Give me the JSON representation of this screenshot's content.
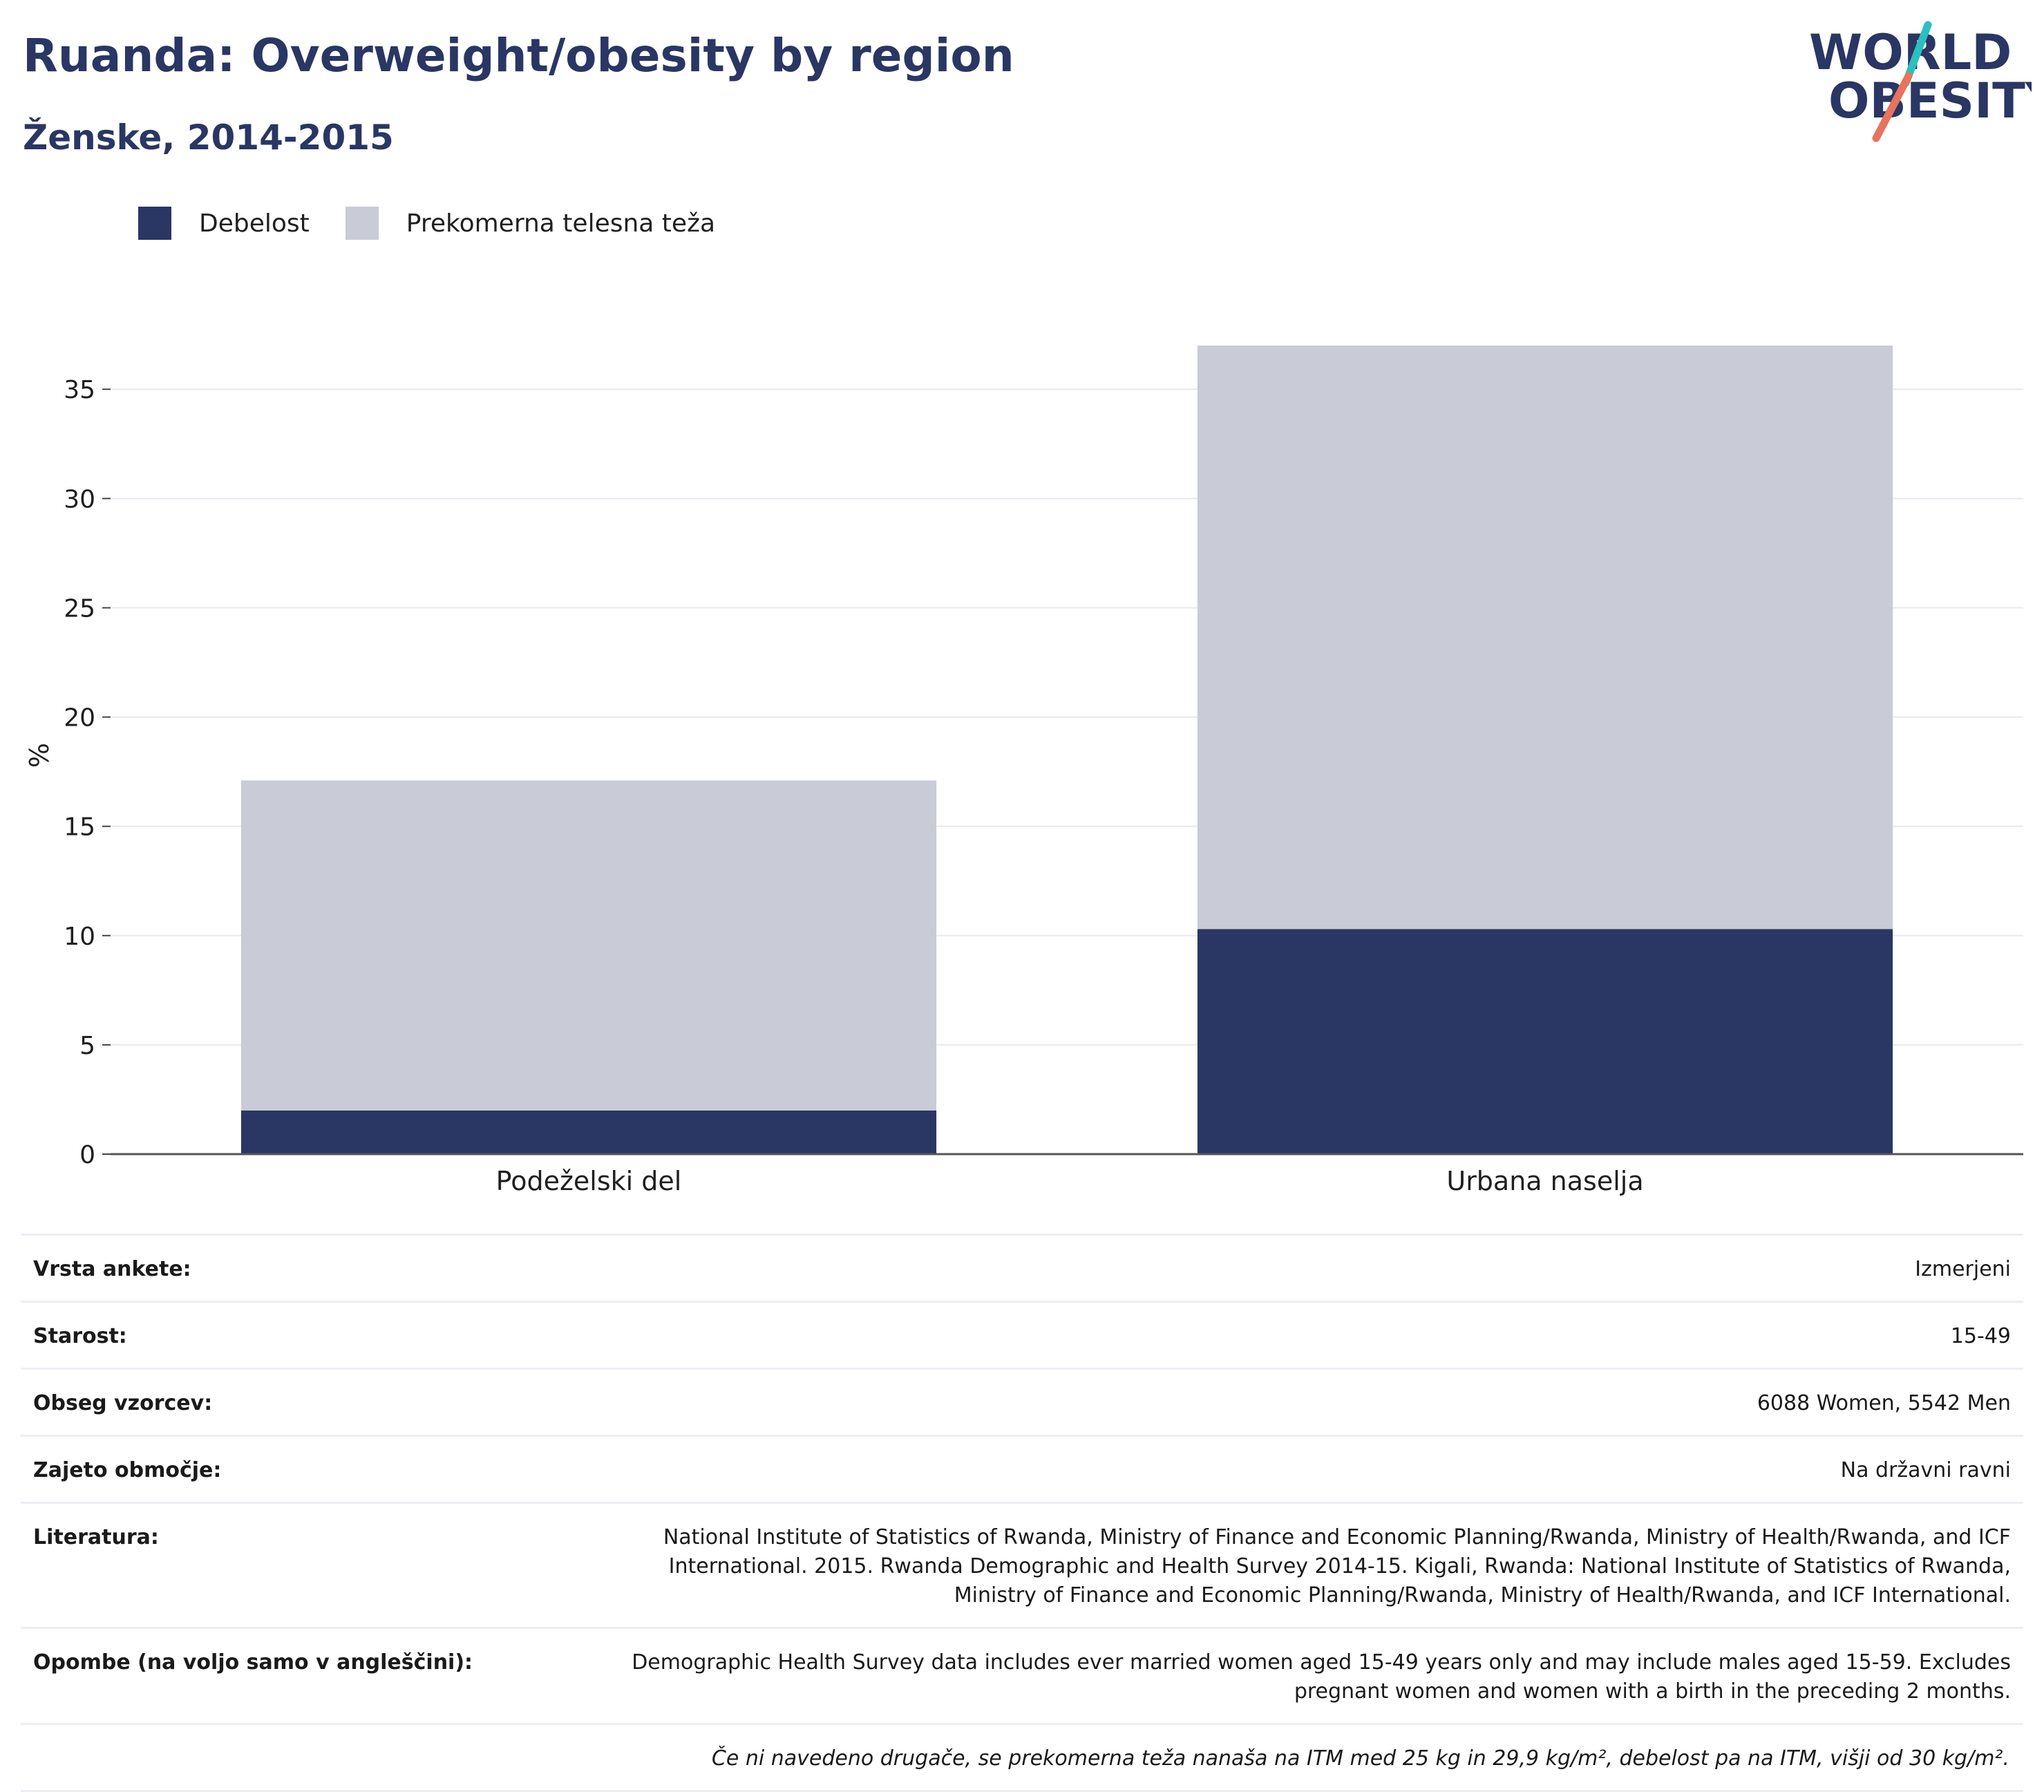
{
  "header": {
    "title": "Ruanda: Overweight/obesity by region",
    "subtitle": "Ženske, 2014-2015"
  },
  "logo": {
    "line1": "WORLD",
    "line2": "OBESITY",
    "colors": {
      "text": "#2a3663",
      "accent_teal": "#2bbfbf",
      "accent_coral": "#e8735e"
    }
  },
  "legend": [
    {
      "label": "Debelost",
      "color": "#2a3663"
    },
    {
      "label": "Prekomerna telesna teža",
      "color": "#c9cbd6"
    }
  ],
  "chart_data": {
    "type": "bar",
    "stacked": true,
    "categories": [
      "Podeželski del",
      "Urbana naselja"
    ],
    "series": [
      {
        "name": "Debelost",
        "values": [
          2.0,
          10.3
        ],
        "color": "#2a3663"
      },
      {
        "name": "Prekomerna telesna teža",
        "values": [
          15.1,
          26.7
        ],
        "color": "#c9cbd6"
      }
    ],
    "ylabel": "%",
    "xlabel": "",
    "ylim": [
      0,
      37
    ],
    "yticks": [
      0,
      5,
      10,
      15,
      20,
      25,
      30,
      35
    ],
    "grid": true,
    "legend_position": "top-left"
  },
  "meta": [
    {
      "key": "Vrsta ankete:",
      "value": "Izmerjeni"
    },
    {
      "key": "Starost:",
      "value": "15-49"
    },
    {
      "key": "Obseg vzorcev:",
      "value": "6088 Women, 5542 Men"
    },
    {
      "key": "Zajeto območje:",
      "value": "Na državni ravni"
    },
    {
      "key": "Literatura:",
      "value": "National Institute of Statistics of Rwanda, Ministry of Finance and Economic Planning/Rwanda, Ministry of Health/Rwanda, and ICF International. 2015. Rwanda Demographic and Health Survey 2014-15. Kigali, Rwanda: National Institute of Statistics of Rwanda, Ministry of Finance and Economic Planning/Rwanda, Ministry of Health/Rwanda, and ICF International."
    },
    {
      "key": "Opombe (na voljo samo v angleščini):",
      "value": "Demographic Health Survey data includes ever married women aged 15-49 years only and may include males aged 15-59. Excludes pregnant women and women with a birth in the preceding 2 months."
    }
  ],
  "footnote": "Če ni navedeno drugače, se prekomerna teža nanaša na ITM med 25 kg in 29,9 kg/m², debelost pa na ITM, višji od 30 kg/m²."
}
